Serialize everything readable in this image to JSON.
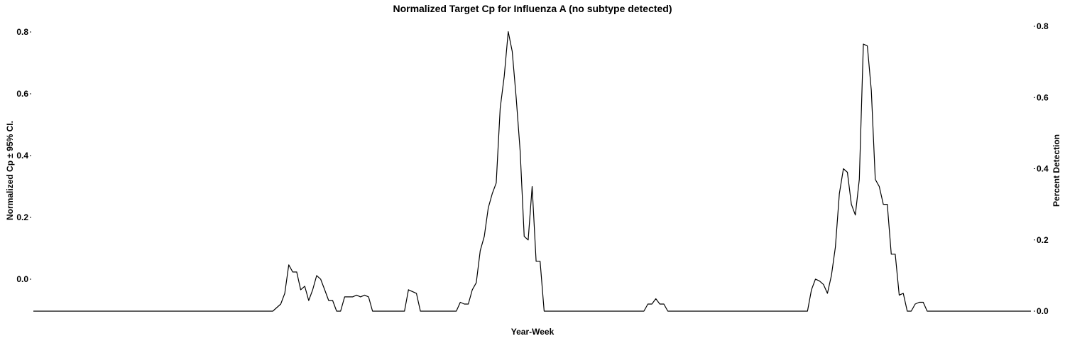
{
  "chart_data": {
    "type": "line",
    "title": "Normalized Target Cp for Influenza A (no subtype detected)",
    "xlabel": "Year-Week",
    "ylabel_left": "Normalized Cp ± 95% CI.",
    "ylabel_right": "Percent Detection",
    "y_left_ticks": [
      "0.0",
      "0.2",
      "0.4",
      "0.6",
      "0.8"
    ],
    "y_right_ticks": [
      "0.0",
      "0.2",
      "0.4",
      "0.6",
      "0.8"
    ],
    "y_right_range": [
      0,
      0.8
    ],
    "grid": false,
    "series": [
      {
        "values": [
          [
            0,
            0
          ],
          [
            60,
            0
          ],
          [
            62,
            0.02
          ],
          [
            63,
            0.05
          ],
          [
            64,
            0.13
          ],
          [
            65,
            0.11
          ],
          [
            66,
            0.11
          ],
          [
            67,
            0.06
          ],
          [
            68,
            0.07
          ],
          [
            69,
            0.03
          ],
          [
            70,
            0.06
          ],
          [
            71,
            0.1
          ],
          [
            72,
            0.09
          ],
          [
            73,
            0.06
          ],
          [
            74,
            0.03
          ],
          [
            75,
            0.03
          ],
          [
            76,
            0
          ],
          [
            77,
            0
          ],
          [
            78,
            0.04
          ],
          [
            79,
            0.04
          ],
          [
            80,
            0.04
          ],
          [
            81,
            0.045
          ],
          [
            82,
            0.04
          ],
          [
            83,
            0.045
          ],
          [
            84,
            0.04
          ],
          [
            85,
            0
          ],
          [
            93,
            0
          ],
          [
            94,
            0.06
          ],
          [
            95,
            0.055
          ],
          [
            96,
            0.05
          ],
          [
            97,
            0
          ],
          [
            106,
            0
          ],
          [
            107,
            0.025
          ],
          [
            108,
            0.02
          ],
          [
            109,
            0.02
          ],
          [
            110,
            0.06
          ],
          [
            111,
            0.08
          ],
          [
            112,
            0.17
          ],
          [
            113,
            0.21
          ],
          [
            114,
            0.29
          ],
          [
            115,
            0.33
          ],
          [
            116,
            0.36
          ],
          [
            117,
            0.57
          ],
          [
            118,
            0.66
          ],
          [
            119,
            0.785
          ],
          [
            120,
            0.73
          ],
          [
            121,
            0.6
          ],
          [
            122,
            0.45
          ],
          [
            123,
            0.21
          ],
          [
            124,
            0.2
          ],
          [
            125,
            0.35
          ],
          [
            126,
            0.14
          ],
          [
            127,
            0.14
          ],
          [
            128,
            0
          ],
          [
            153,
            0
          ],
          [
            154,
            0.02
          ],
          [
            155,
            0.02
          ],
          [
            156,
            0.035
          ],
          [
            157,
            0.02
          ],
          [
            158,
            0.02
          ],
          [
            159,
            0
          ],
          [
            194,
            0
          ],
          [
            195,
            0.06
          ],
          [
            196,
            0.09
          ],
          [
            197,
            0.085
          ],
          [
            198,
            0.075
          ],
          [
            199,
            0.05
          ],
          [
            200,
            0.1
          ],
          [
            201,
            0.18
          ],
          [
            202,
            0.33
          ],
          [
            203,
            0.4
          ],
          [
            204,
            0.39
          ],
          [
            205,
            0.3
          ],
          [
            206,
            0.27
          ],
          [
            207,
            0.37
          ],
          [
            208,
            0.75
          ],
          [
            209,
            0.745
          ],
          [
            210,
            0.62
          ],
          [
            211,
            0.37
          ],
          [
            212,
            0.35
          ],
          [
            213,
            0.3
          ],
          [
            214,
            0.3
          ],
          [
            215,
            0.16
          ],
          [
            216,
            0.16
          ],
          [
            217,
            0.045
          ],
          [
            218,
            0.05
          ],
          [
            219,
            0
          ],
          [
            220,
            0
          ],
          [
            221,
            0.02
          ],
          [
            222,
            0.025
          ],
          [
            223,
            0.025
          ],
          [
            224,
            0
          ],
          [
            250,
            0
          ]
        ]
      }
    ]
  }
}
